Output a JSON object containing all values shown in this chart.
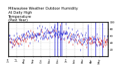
{
  "title": "Milwaukee Weather Outdoor Humidity At Daily High Temperature (Past Year)",
  "ylim": [
    0,
    100
  ],
  "xlim": [
    0,
    365
  ],
  "num_points": 365,
  "blue_color": "#0000cc",
  "red_color": "#cc0000",
  "bg_color": "#ffffff",
  "grid_color": "#888888",
  "title_fontsize": 3.8,
  "tick_fontsize": 2.8,
  "seed": 42,
  "yticks": [
    20,
    40,
    60,
    80,
    100
  ],
  "month_starts": [
    0,
    31,
    59,
    90,
    120,
    151,
    181,
    212,
    243,
    273,
    304,
    334
  ],
  "month_labels": [
    "Jun",
    "Jul",
    "Aug",
    "Sep",
    "Oct",
    "Nov",
    "Dec",
    "Jan",
    "Feb",
    "Mar",
    "Apr",
    "May"
  ]
}
